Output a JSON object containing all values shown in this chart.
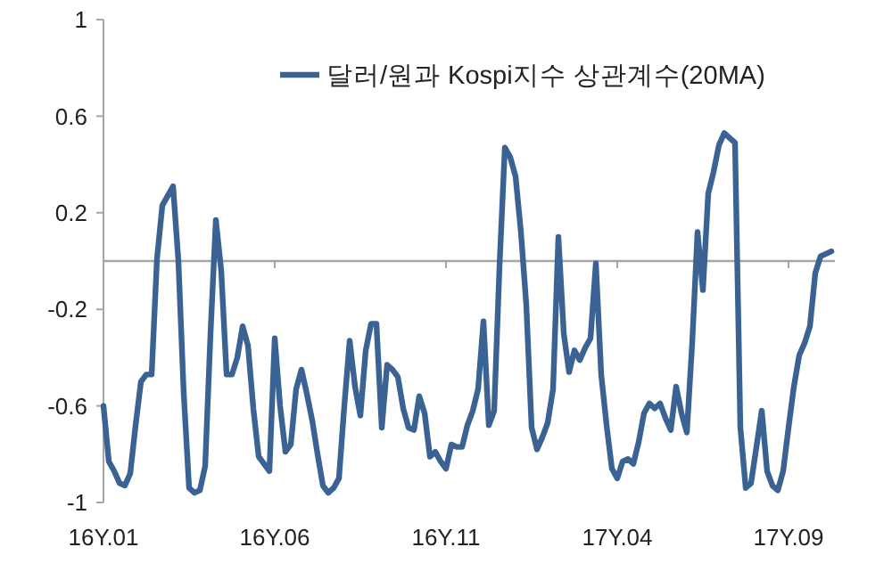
{
  "chart_data": {
    "type": "line",
    "ylim": [
      -1,
      1
    ],
    "yticks": [
      -1,
      -0.6,
      -0.2,
      0.2,
      0.6,
      1
    ],
    "categories": [
      "16Y.01",
      null,
      null,
      null,
      null,
      null,
      null,
      null,
      null,
      null,
      null,
      null,
      null,
      null,
      null,
      null,
      null,
      null,
      null,
      null,
      null,
      null,
      null,
      null,
      null,
      null,
      null,
      null,
      null,
      null,
      null,
      null,
      "16Y.06",
      null,
      null,
      null,
      null,
      null,
      null,
      null,
      null,
      null,
      null,
      null,
      null,
      null,
      null,
      null,
      null,
      null,
      null,
      null,
      null,
      null,
      null,
      null,
      null,
      null,
      null,
      null,
      null,
      null,
      null,
      null,
      "16Y.11",
      null,
      null,
      null,
      null,
      null,
      null,
      null,
      null,
      null,
      null,
      null,
      null,
      null,
      null,
      null,
      null,
      null,
      null,
      null,
      null,
      null,
      null,
      null,
      null,
      null,
      null,
      null,
      null,
      null,
      null,
      null,
      "17Y.04",
      null,
      null,
      null,
      null,
      null,
      null,
      null,
      null,
      null,
      null,
      null,
      null,
      null,
      null,
      null,
      null,
      null,
      null,
      null,
      null,
      null,
      null,
      null,
      null,
      null,
      null,
      null,
      null,
      null,
      null,
      null,
      "17Y.09",
      null,
      null,
      null,
      null,
      null,
      null,
      null,
      null
    ],
    "grid": false,
    "legend": "top",
    "line_style": "solid",
    "marker": "none",
    "ref_lines": [
      {
        "axis": "y",
        "value": 0,
        "color": "#a6a6a6"
      }
    ],
    "series": [
      {
        "name": "달러/원과 Kospi지수 상관계수(20MA)",
        "color": "#3a6394",
        "values": [
          -0.6,
          -0.83,
          -0.87,
          -0.92,
          -0.93,
          -0.88,
          -0.68,
          -0.5,
          -0.47,
          -0.47,
          0.01,
          0.23,
          0.27,
          0.31,
          0,
          -0.55,
          -0.94,
          -0.96,
          -0.95,
          -0.85,
          -0.3,
          0.17,
          -0.04,
          -0.47,
          -0.47,
          -0.4,
          -0.27,
          -0.35,
          -0.61,
          -0.81,
          -0.84,
          -0.87,
          -0.32,
          -0.6,
          -0.79,
          -0.76,
          -0.53,
          -0.45,
          -0.55,
          -0.66,
          -0.8,
          -0.93,
          -0.96,
          -0.94,
          -0.9,
          -0.6,
          -0.33,
          -0.52,
          -0.64,
          -0.37,
          -0.26,
          -0.26,
          -0.69,
          -0.43,
          -0.45,
          -0.48,
          -0.61,
          -0.69,
          -0.7,
          -0.56,
          -0.63,
          -0.81,
          -0.79,
          -0.83,
          -0.86,
          -0.76,
          -0.77,
          -0.77,
          -0.68,
          -0.62,
          -0.53,
          -0.25,
          -0.68,
          -0.62,
          -0.02,
          0.47,
          0.43,
          0.35,
          0.12,
          -0.18,
          -0.69,
          -0.78,
          -0.73,
          -0.67,
          -0.53,
          0.1,
          -0.3,
          -0.46,
          -0.37,
          -0.41,
          -0.36,
          -0.32,
          -0.01,
          -0.47,
          -0.68,
          -0.86,
          -0.9,
          -0.83,
          -0.82,
          -0.84,
          -0.75,
          -0.63,
          -0.59,
          -0.61,
          -0.59,
          -0.65,
          -0.7,
          -0.52,
          -0.63,
          -0.71,
          -0.34,
          0.12,
          -0.12,
          0.28,
          0.37,
          0.48,
          0.53,
          0.51,
          0.49,
          -0.69,
          -0.94,
          -0.92,
          -0.77,
          -0.62,
          -0.87,
          -0.93,
          -0.95,
          -0.87,
          -0.69,
          -0.52,
          -0.39,
          -0.34,
          -0.27,
          -0.05,
          0.02,
          0.03,
          0.04
        ]
      }
    ]
  }
}
